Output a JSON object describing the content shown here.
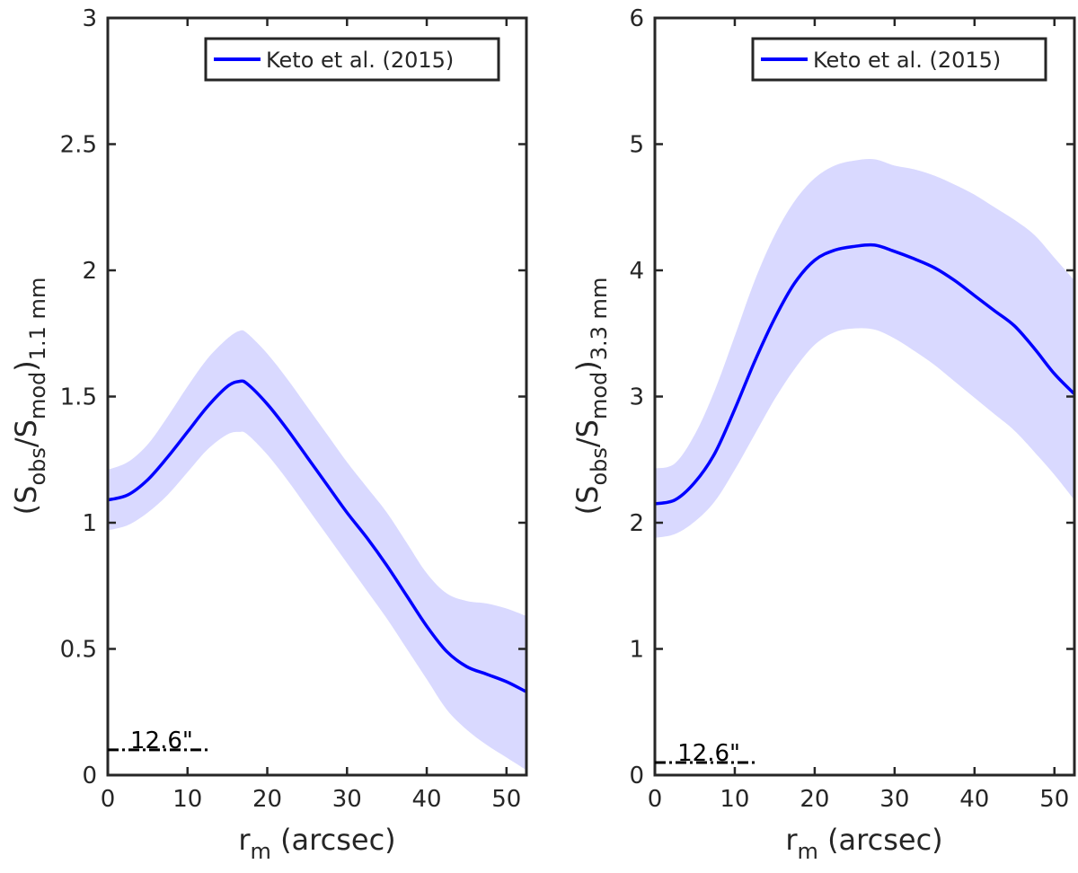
{
  "colors": {
    "line": "#0000ff",
    "band": "#d9d9ff",
    "axis": "#262626",
    "scalebar": "#000000"
  },
  "chart_data": [
    {
      "type": "line",
      "xlabel": "(arcsec)",
      "xlabel_symbol": "r",
      "xlabel_sub": "m",
      "ylabel_prefix": "(S",
      "ylabel_sub1": "obs",
      "ylabel_mid": "/S",
      "ylabel_sub2": "mod",
      "ylabel_close": ")",
      "ylabel_sub3": "1.1 mm",
      "xlim": [
        0,
        52.5
      ],
      "ylim": [
        0,
        3
      ],
      "xticks": [
        0,
        10,
        20,
        30,
        40,
        50
      ],
      "xtick_labels": [
        "0",
        "10",
        "20",
        "30",
        "40",
        "50"
      ],
      "yticks": [
        0,
        0.5,
        1,
        1.5,
        2,
        2.5,
        3
      ],
      "ytick_labels": [
        "0",
        "0.5",
        "1",
        "1.5",
        "2",
        "2.5",
        "3"
      ],
      "legend": "Keto et al. (2015)",
      "legend_position": "top-right",
      "series": [
        {
          "name": "Keto et al. (2015)",
          "x": [
            0,
            2.5,
            5,
            7.5,
            10,
            12.5,
            15,
            16.5,
            17.5,
            20,
            22.5,
            25,
            27.5,
            30,
            32.5,
            35,
            37.5,
            40,
            42.5,
            45,
            47.5,
            50,
            52.5
          ],
          "values": [
            1.09,
            1.11,
            1.17,
            1.26,
            1.36,
            1.46,
            1.54,
            1.56,
            1.55,
            1.47,
            1.37,
            1.26,
            1.15,
            1.04,
            0.94,
            0.83,
            0.71,
            0.59,
            0.49,
            0.43,
            0.4,
            0.37,
            0.33
          ],
          "upper": [
            1.21,
            1.24,
            1.31,
            1.42,
            1.54,
            1.65,
            1.73,
            1.76,
            1.75,
            1.67,
            1.57,
            1.46,
            1.35,
            1.24,
            1.14,
            1.04,
            0.92,
            0.8,
            0.72,
            0.69,
            0.68,
            0.66,
            0.63
          ],
          "lower": [
            0.97,
            0.99,
            1.04,
            1.11,
            1.2,
            1.29,
            1.35,
            1.36,
            1.35,
            1.27,
            1.17,
            1.06,
            0.95,
            0.84,
            0.73,
            0.62,
            0.5,
            0.38,
            0.26,
            0.18,
            0.12,
            0.07,
            0.02
          ]
        }
      ],
      "scalebar": {
        "label": "12.6\"",
        "x": [
          0,
          12.6
        ],
        "y": 0.1
      }
    },
    {
      "type": "line",
      "xlabel": "(arcsec)",
      "xlabel_symbol": "r",
      "xlabel_sub": "m",
      "ylabel_prefix": "(S",
      "ylabel_sub1": "obs",
      "ylabel_mid": "/S",
      "ylabel_sub2": "mod",
      "ylabel_close": ")",
      "ylabel_sub3": "3.3 mm",
      "xlim": [
        0,
        52.5
      ],
      "ylim": [
        0,
        6
      ],
      "xticks": [
        0,
        10,
        20,
        30,
        40,
        50
      ],
      "xtick_labels": [
        "0",
        "10",
        "20",
        "30",
        "40",
        "50"
      ],
      "yticks": [
        0,
        1,
        2,
        3,
        4,
        5,
        6
      ],
      "ytick_labels": [
        "0",
        "1",
        "2",
        "3",
        "4",
        "5",
        "6"
      ],
      "legend": "Keto et al. (2015)",
      "legend_position": "top-right",
      "series": [
        {
          "name": "Keto et al. (2015)",
          "x": [
            0,
            2.5,
            5,
            7.5,
            10,
            12.5,
            15,
            17.5,
            20,
            22.5,
            25,
            27.5,
            30,
            32.5,
            35,
            37.5,
            40,
            42.5,
            45,
            47.5,
            50,
            52.5
          ],
          "values": [
            2.15,
            2.18,
            2.32,
            2.55,
            2.9,
            3.28,
            3.62,
            3.9,
            4.08,
            4.16,
            4.19,
            4.2,
            4.15,
            4.09,
            4.02,
            3.92,
            3.8,
            3.68,
            3.56,
            3.38,
            3.18,
            3.02
          ],
          "upper": [
            2.43,
            2.47,
            2.7,
            3.05,
            3.48,
            3.92,
            4.28,
            4.55,
            4.73,
            4.83,
            4.87,
            4.88,
            4.83,
            4.8,
            4.75,
            4.68,
            4.6,
            4.5,
            4.4,
            4.28,
            4.1,
            3.92
          ],
          "lower": [
            1.88,
            1.91,
            2.01,
            2.17,
            2.42,
            2.7,
            2.98,
            3.22,
            3.41,
            3.51,
            3.54,
            3.53,
            3.46,
            3.36,
            3.25,
            3.12,
            2.99,
            2.86,
            2.73,
            2.56,
            2.38,
            2.18
          ]
        }
      ],
      "scalebar": {
        "label": "12.6\"",
        "x": [
          0,
          12.6
        ],
        "y": 0.1
      }
    }
  ]
}
